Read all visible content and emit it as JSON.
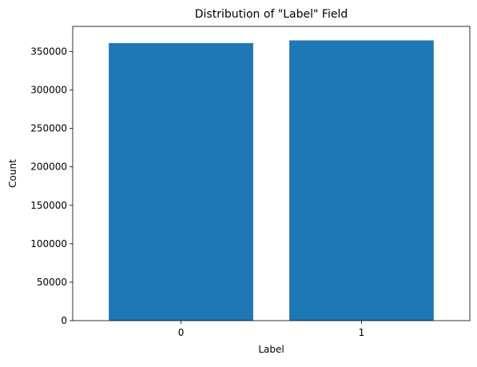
{
  "chart_data": {
    "type": "bar",
    "title": "Distribution of \"Label\" Field",
    "xlabel": "Label",
    "ylabel": "Count",
    "categories": [
      "0",
      "1"
    ],
    "values": [
      361000,
      364500
    ],
    "ylim": [
      0,
      382725
    ],
    "yticks": [
      0,
      50000,
      100000,
      150000,
      200000,
      250000,
      300000,
      350000
    ],
    "ytick_labels": [
      "0",
      "50000",
      "100000",
      "150000",
      "200000",
      "250000",
      "300000",
      "350000"
    ],
    "grid": false,
    "legend": "none",
    "colors": {
      "bar": "#1f77b4",
      "axis": "#000000",
      "background": "#ffffff"
    }
  }
}
